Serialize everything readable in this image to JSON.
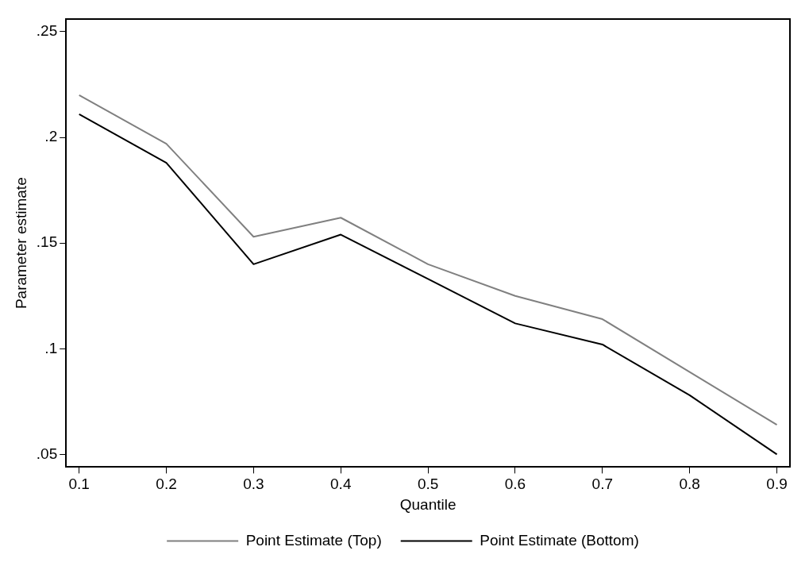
{
  "chart_data": {
    "type": "line",
    "xlabel": "Quantile",
    "ylabel": "Parameter estimate",
    "x": [
      0.1,
      0.2,
      0.3,
      0.4,
      0.5,
      0.6,
      0.7,
      0.8,
      0.9
    ],
    "series": [
      {
        "name": "Point Estimate (Top)",
        "color": "#808080",
        "values": [
          0.22,
          0.197,
          0.153,
          0.162,
          0.14,
          0.125,
          0.114,
          0.089,
          0.064
        ]
      },
      {
        "name": "Point Estimate (Bottom)",
        "color": "#000000",
        "values": [
          0.211,
          0.188,
          0.14,
          0.154,
          0.133,
          0.112,
          0.102,
          0.078,
          0.05
        ]
      }
    ],
    "xlim": [
      0.085,
      0.915
    ],
    "ylim": [
      0.044,
      0.256
    ],
    "xticks": [
      0.1,
      0.2,
      0.3,
      0.4,
      0.5,
      0.6,
      0.7,
      0.8,
      0.9
    ],
    "yticks": [
      {
        "value": 0.05,
        "label": ".05"
      },
      {
        "value": 0.1,
        "label": ".1"
      },
      {
        "value": 0.15,
        "label": ".15"
      },
      {
        "value": 0.2,
        "label": ".2"
      },
      {
        "value": 0.25,
        "label": ".25"
      }
    ],
    "grid": false,
    "legend": "bottom",
    "marker": "none",
    "line_style": "solid"
  }
}
